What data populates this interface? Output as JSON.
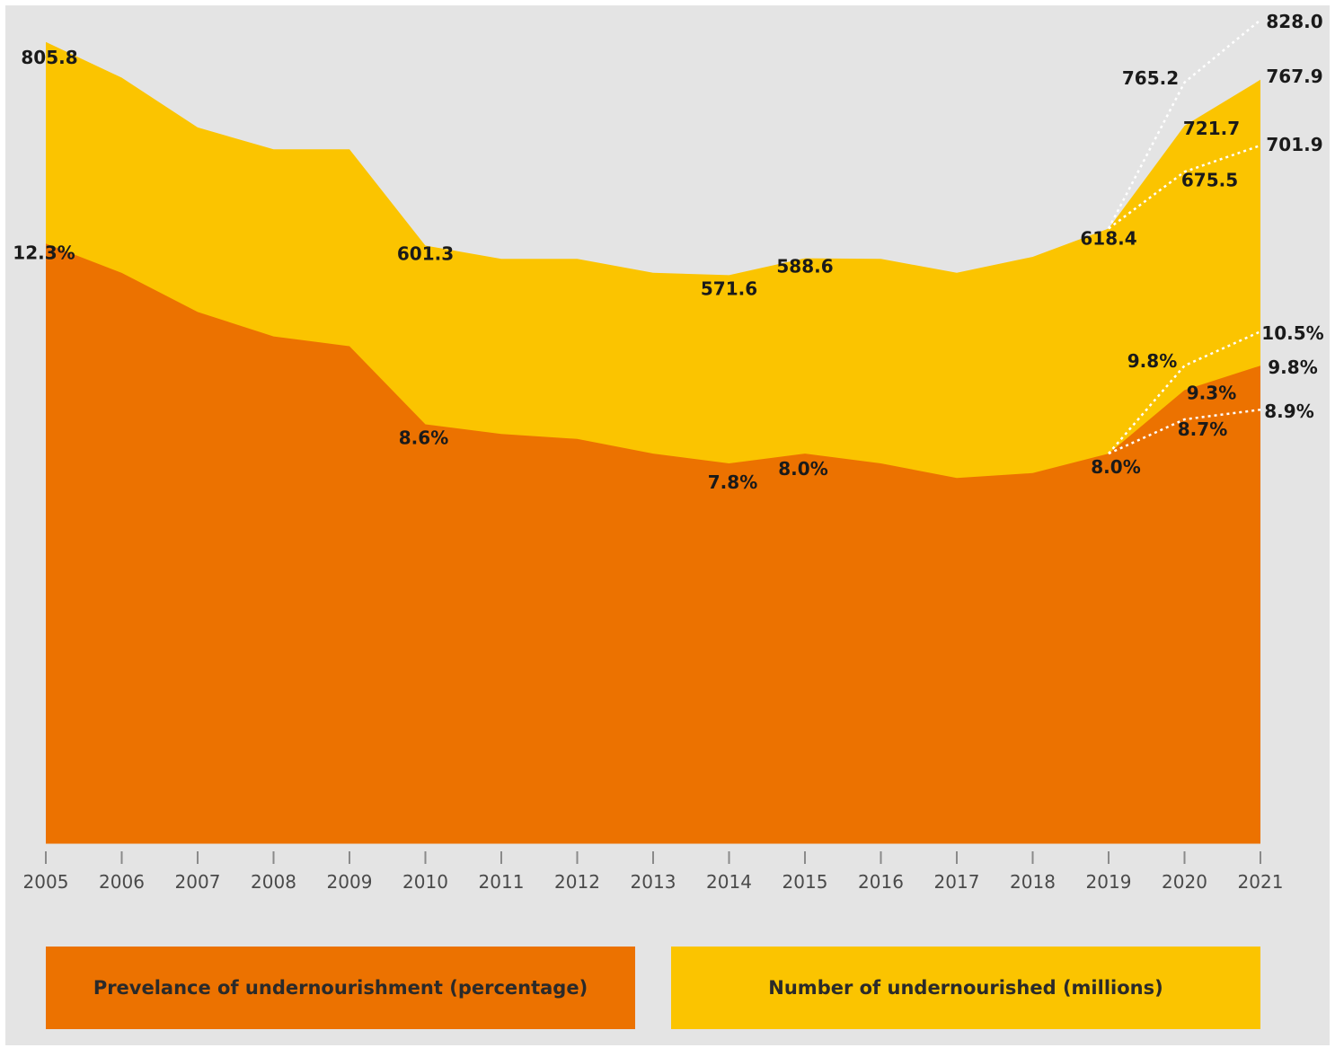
{
  "colors": {
    "background": "#e4e4e4",
    "prevalence": "#ec7200",
    "number": "#fbc400",
    "projection_line": "#ffffff"
  },
  "legend": {
    "prevalence": "Prevelance of undernourishment (percentage)",
    "number": "Number of undernourished (millions)"
  },
  "chart_data": {
    "type": "area",
    "grid": false,
    "legend_position": "bottom",
    "x": [
      2005,
      2006,
      2007,
      2008,
      2009,
      2010,
      2011,
      2012,
      2013,
      2014,
      2015,
      2016,
      2017,
      2018,
      2019,
      2020,
      2021
    ],
    "x_tick_labels": [
      "2005",
      "2006",
      "2007",
      "2008",
      "2009",
      "2010",
      "2011",
      "2012",
      "2013",
      "2014",
      "2015",
      "2016",
      "2017",
      "2018",
      "2019",
      "2020",
      "2021"
    ],
    "ylim_millions": [
      0,
      830
    ],
    "ylim_percent": [
      0,
      12.6
    ],
    "series": [
      {
        "name": "Number of undernourished (millions)",
        "key": "number",
        "unit": "millions",
        "values": [
          805.8,
          770,
          720,
          698,
          698,
          601.3,
          588,
          588,
          574,
          571.6,
          588.6,
          588,
          574,
          590,
          618.4,
          721.7,
          767.9
        ],
        "labels": [
          {
            "x": 2005,
            "text": "805.8"
          },
          {
            "x": 2010,
            "text": "601.3"
          },
          {
            "x": 2014,
            "text": "571.6"
          },
          {
            "x": 2015,
            "text": "588.6"
          },
          {
            "x": 2019,
            "text": "618.4"
          },
          {
            "x": 2020,
            "text": "721.7"
          },
          {
            "x": 2021,
            "text": "767.9"
          }
        ],
        "projections": [
          {
            "from": [
              2019,
              618.4
            ],
            "points": [
              [
                2020,
                765.2
              ],
              [
                2021,
                828.0
              ]
            ],
            "labels": [
              "765.2",
              "828.0"
            ]
          },
          {
            "from": [
              2019,
              618.4
            ],
            "points": [
              [
                2020,
                675.5
              ],
              [
                2021,
                701.9
              ]
            ],
            "labels": [
              "675.5",
              "701.9"
            ]
          }
        ]
      },
      {
        "name": "Prevelance of undernourishment (percentage)",
        "key": "prevalence",
        "unit": "%",
        "values": [
          12.3,
          11.7,
          10.9,
          10.4,
          10.2,
          8.6,
          8.4,
          8.3,
          8.0,
          7.8,
          8.0,
          7.8,
          7.5,
          7.6,
          8.0,
          9.3,
          9.8
        ],
        "labels": [
          {
            "x": 2005,
            "text": "12.3%"
          },
          {
            "x": 2010,
            "text": "8.6%"
          },
          {
            "x": 2014,
            "text": "7.8%"
          },
          {
            "x": 2015,
            "text": "8.0%"
          },
          {
            "x": 2019,
            "text": "8.0%"
          },
          {
            "x": 2020,
            "text": "9.3%"
          },
          {
            "x": 2021,
            "text": "9.8%"
          }
        ],
        "projections": [
          {
            "from": [
              2019,
              8.0
            ],
            "points": [
              [
                2020,
                9.8
              ],
              [
                2021,
                10.5
              ]
            ],
            "labels": [
              "9.8%",
              "10.5%"
            ]
          },
          {
            "from": [
              2019,
              8.0
            ],
            "points": [
              [
                2020,
                8.7
              ],
              [
                2021,
                8.9
              ]
            ],
            "labels": [
              "8.7%",
              "8.9%"
            ]
          }
        ]
      }
    ]
  }
}
